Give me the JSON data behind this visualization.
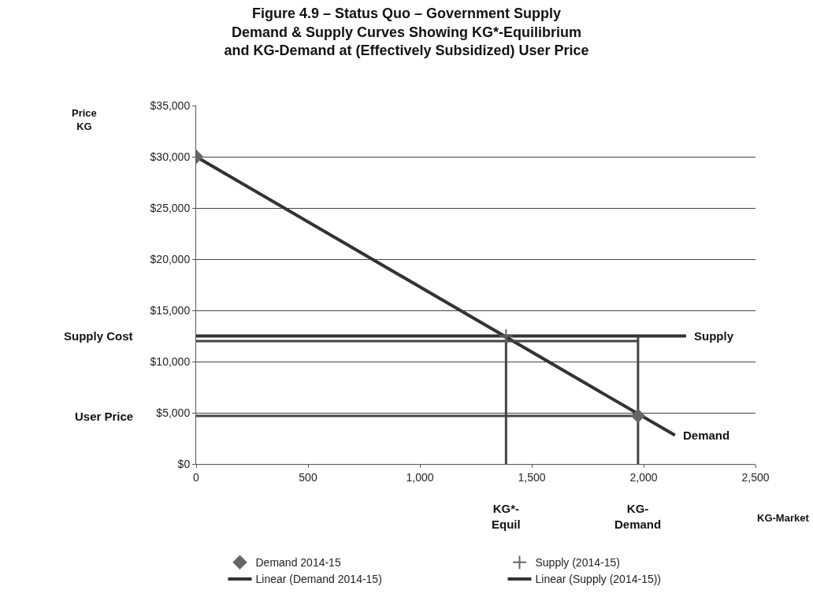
{
  "chart_data": {
    "type": "line",
    "title": "Figure 4.9 – Status Quo – Government Supply\nDemand & Supply Curves Showing KG*-Equilibrium\nand KG-Demand at (Effectively Subsidized) User Price",
    "xlabel": "KG-Market",
    "xlim": [
      0,
      2500
    ],
    "ylim": [
      0,
      35000
    ],
    "xticks": [
      0,
      500,
      {
        "value": 1000,
        "label": "1,000"
      },
      {
        "value": 1500,
        "label": "1,500"
      },
      {
        "value": 2000,
        "label": "2,000"
      },
      {
        "value": 2500,
        "label": "2,500"
      }
    ],
    "yticks": [
      {
        "value": 0,
        "label": "$0"
      },
      {
        "value": 5000,
        "label": "$5,000"
      },
      {
        "value": 10000,
        "label": "$10,000"
      },
      {
        "value": 15000,
        "label": "$15,000"
      },
      {
        "value": 20000,
        "label": "$20,000"
      },
      {
        "value": 25000,
        "label": "$25,000"
      },
      {
        "value": 30000,
        "label": "$30,000"
      },
      {
        "value": 35000,
        "label": "$35,000"
      }
    ],
    "grid": "y",
    "legend": "bottom",
    "series": [
      {
        "name": "Demand 2014-15",
        "type": "scatter",
        "marker": "diamond",
        "color": "#666666",
        "x": [
          0,
          1975
        ],
        "values": [
          30000,
          4700
        ]
      },
      {
        "name": "Supply (2014-15)",
        "type": "scatter",
        "marker": "cross",
        "color": "#666666",
        "x": [
          1385
        ],
        "values": [
          12500
        ]
      },
      {
        "name": "Linear (Demand 2014-15)",
        "color": "#333333",
        "x": [
          0,
          2140
        ],
        "values": [
          30000,
          2800
        ]
      },
      {
        "name": "Linear (Supply (2014-15))",
        "color": "#333333",
        "x": [
          0,
          2190
        ],
        "values": [
          12500,
          12500
        ]
      },
      {
        "color": "#444444",
        "x": [
          0,
          1975
        ],
        "values": [
          12000,
          12000
        ]
      },
      {
        "color": "#444444",
        "x": [
          0,
          1975
        ],
        "values": [
          4700,
          4700
        ]
      },
      {
        "color": "#444444",
        "x": [
          1385,
          1385
        ],
        "values": [
          0,
          12500
        ]
      },
      {
        "color": "#444444",
        "x": [
          1975,
          1975
        ],
        "values": [
          0,
          12500
        ]
      }
    ],
    "annotations": [
      "Price\nKG",
      "Supply Cost",
      "User Price",
      {
        "text": "Supply",
        "x": 2190,
        "y": 12500
      },
      {
        "text": "Demand",
        "x": 2140,
        "y": 2800
      },
      "KG*-\nEquil",
      "KG-\nDemand"
    ]
  }
}
